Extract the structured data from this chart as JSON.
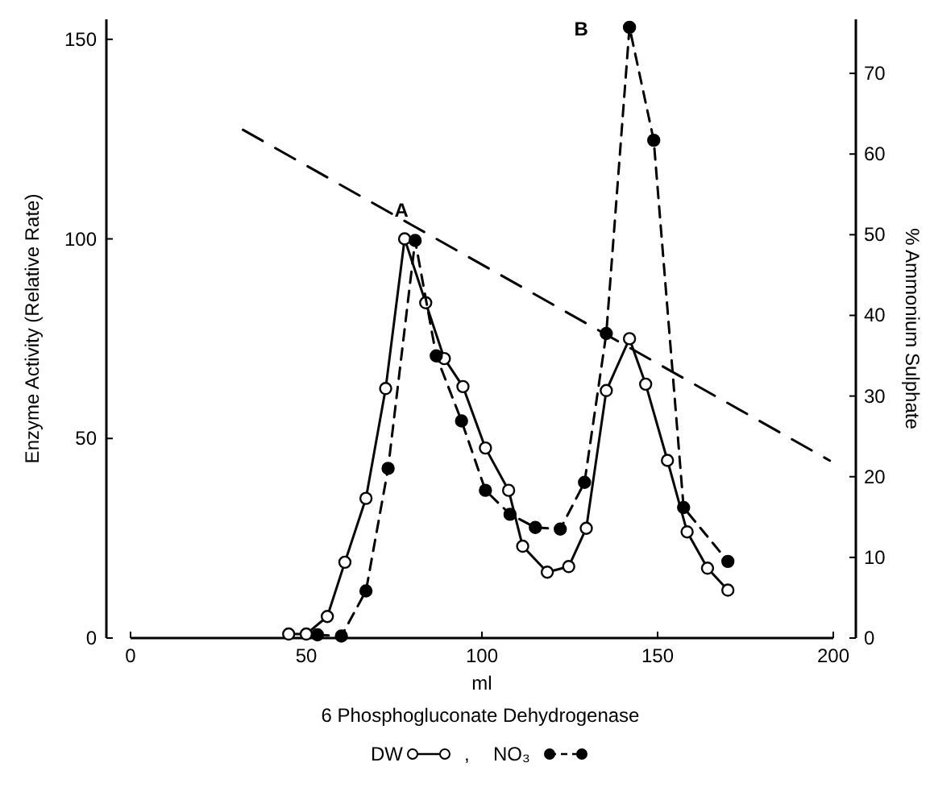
{
  "chart_data": {
    "type": "line",
    "title": "6 Phosphogluconate Dehydrogenase",
    "xlabel": "ml",
    "ylabel": "Enzyme Activity  (Relative Rate)",
    "y2label": "% Ammonium Sulphate",
    "xlim": [
      0,
      200
    ],
    "xticks": [
      0,
      50,
      100,
      150,
      200
    ],
    "ylim": [
      0,
      155
    ],
    "yticks": [
      0,
      50,
      100,
      150
    ],
    "y2lim": [
      0,
      76.7
    ],
    "y2ticks": [
      0,
      10,
      20,
      30,
      40,
      50,
      60,
      70
    ],
    "legend": "bottom",
    "grid": false,
    "marker": "circle",
    "annotations": [
      {
        "text": "A",
        "x": 78,
        "y": 100
      },
      {
        "text": "B",
        "x": 142,
        "y": 153
      },
      ","
    ],
    "series": [
      {
        "name": "DW",
        "color": "#ffffff",
        "line_style": "solid",
        "x": [
          45,
          50,
          56,
          61,
          67,
          72.6,
          78,
          84,
          89.3,
          94.6,
          101,
          107.6,
          111.6,
          118.6,
          124.7,
          129.7,
          135.4,
          142,
          146.6,
          152.8,
          158.4,
          164.2,
          170
        ],
        "values": [
          1,
          1,
          5.4,
          19,
          35,
          62.5,
          100,
          84,
          70,
          63,
          47.6,
          37,
          23,
          16.5,
          17.9,
          27.5,
          62,
          75,
          63.6,
          44.5,
          26.6,
          17.5,
          12
        ]
      },
      {
        "name": "NO₃",
        "color": "#000000",
        "line_style": "dashed",
        "x": [
          53.2,
          60,
          67,
          73.3,
          81,
          87,
          94.2,
          101,
          108,
          115.2,
          122.3,
          129.2,
          135.4,
          142,
          148.9,
          157.4,
          170
        ],
        "values": [
          0.8,
          0.5,
          11.8,
          42.5,
          99.6,
          70.7,
          54.4,
          37,
          31,
          27.7,
          27.3,
          39,
          76.3,
          153,
          124.7,
          32.7,
          19.2
        ]
      },
      {
        "color": "#000000",
        "line_style": "dashed",
        "marker": "none",
        "axis": "y2",
        "x": [
          32,
          199
        ],
        "values": [
          63,
          22
        ]
      }
    ]
  }
}
